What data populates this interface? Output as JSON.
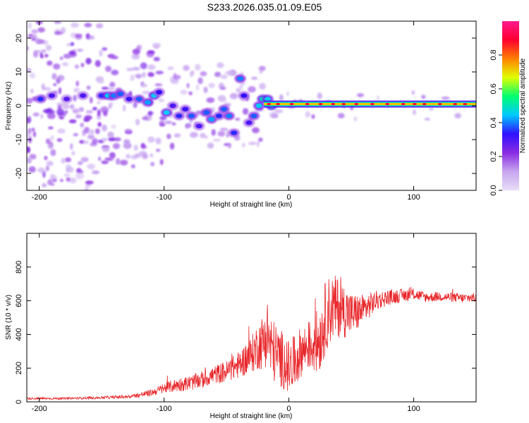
{
  "title": "S233.2026.035.01.09.E05",
  "colors": {
    "snr_line": "#e8262a",
    "colorbar": [
      "#e8dcf6",
      "#c7a6f0",
      "#8a2be2",
      "#3010ff",
      "#00c8ff",
      "#00ff70",
      "#e0ff00",
      "#ff8000",
      "#ff0030",
      "#ff1a8c"
    ]
  },
  "chart_data": [
    {
      "type": "heatmap",
      "xlabel": "Height of straight line (km)",
      "ylabel": "Frequency (Hz)",
      "xlim": [
        -210,
        150
      ],
      "ylim": [
        -25,
        25
      ],
      "xticks": [
        -200,
        -100,
        0,
        100
      ],
      "xtick_labels": [
        "-200",
        "-100",
        "0",
        "100"
      ],
      "yticks": [
        -20,
        -10,
        0,
        10,
        20
      ],
      "ytick_labels": [
        "-20",
        "-10",
        "0",
        "10",
        "20"
      ],
      "colorbar": {
        "label": "Normalized spectral amplitude",
        "range": [
          0,
          1
        ],
        "ticks": [
          0.0,
          0.2,
          0.4,
          0.6,
          0.8
        ],
        "tick_labels": [
          "0.0",
          "0.2",
          "0.4",
          "0.6",
          "0.8"
        ]
      },
      "ridge": {
        "x_start": -20,
        "x_end": 150,
        "frequency": 0.5,
        "amplitude": 0.9
      },
      "features": [
        {
          "x": -199,
          "y": 2,
          "amp": 0.35
        },
        {
          "x": -190,
          "y": 3,
          "amp": 0.3
        },
        {
          "x": -178,
          "y": 2,
          "amp": 0.28
        },
        {
          "x": -165,
          "y": 3,
          "amp": 0.3
        },
        {
          "x": -150,
          "y": 3,
          "amp": 0.35
        },
        {
          "x": -145,
          "y": 3,
          "amp": 0.45
        },
        {
          "x": -140,
          "y": 3,
          "amp": 0.4
        },
        {
          "x": -135,
          "y": 3.5,
          "amp": 0.38
        },
        {
          "x": -128,
          "y": 2,
          "amp": 0.32
        },
        {
          "x": -120,
          "y": 2,
          "amp": 0.38
        },
        {
          "x": -113,
          "y": 1,
          "amp": 0.42
        },
        {
          "x": -108,
          "y": 3,
          "amp": 0.45
        },
        {
          "x": -104,
          "y": 4,
          "amp": 0.33
        },
        {
          "x": -98,
          "y": -2,
          "amp": 0.45
        },
        {
          "x": -93,
          "y": 0,
          "amp": 0.3
        },
        {
          "x": -88,
          "y": -3,
          "amp": 0.35
        },
        {
          "x": -83,
          "y": -1,
          "amp": 0.32
        },
        {
          "x": -78,
          "y": -3,
          "amp": 0.38
        },
        {
          "x": -72,
          "y": -6,
          "amp": 0.3
        },
        {
          "x": -66,
          "y": -2,
          "amp": 0.38
        },
        {
          "x": -62,
          "y": -4,
          "amp": 0.42
        },
        {
          "x": -56,
          "y": -3,
          "amp": 0.35
        },
        {
          "x": -52,
          "y": -1,
          "amp": 0.38
        },
        {
          "x": -48,
          "y": -3,
          "amp": 0.4
        },
        {
          "x": -44,
          "y": -8,
          "amp": 0.35
        },
        {
          "x": -39,
          "y": 8,
          "amp": 0.4
        },
        {
          "x": -36,
          "y": 3,
          "amp": 0.33
        },
        {
          "x": -32,
          "y": -5,
          "amp": 0.3
        },
        {
          "x": -28,
          "y": -3,
          "amp": 0.38
        },
        {
          "x": -24,
          "y": 0,
          "amp": 0.45
        },
        {
          "x": -21,
          "y": 2,
          "amp": 0.5
        },
        {
          "x": -17,
          "y": 2,
          "amp": 0.45
        },
        {
          "x": -14,
          "y": 0,
          "amp": 0.55
        }
      ]
    },
    {
      "type": "line",
      "xlabel": "Height of straight line (km)",
      "ylabel": "SNR (10 * v/v)",
      "xlim": [
        -210,
        150
      ],
      "ylim": [
        0,
        1000
      ],
      "xticks": [
        -200,
        -100,
        0,
        100
      ],
      "xtick_labels": [
        "-200",
        "-100",
        "0",
        "100"
      ],
      "yticks": [
        0,
        200,
        400,
        600,
        800
      ],
      "ytick_labels": [
        "0",
        "200",
        "400",
        "600",
        "800"
      ],
      "series": [
        {
          "name": "SNR",
          "x": [
            -210,
            -180,
            -150,
            -130,
            -120,
            -110,
            -100,
            -90,
            -80,
            -70,
            -60,
            -50,
            -40,
            -30,
            -25,
            -20,
            -17,
            -15,
            -10,
            -5,
            0,
            5,
            10,
            15,
            20,
            25,
            30,
            35,
            40,
            45,
            50,
            55,
            60,
            70,
            80,
            90,
            100,
            110,
            120,
            130,
            140,
            150
          ],
          "y": [
            20,
            20,
            25,
            30,
            40,
            55,
            80,
            100,
            110,
            130,
            160,
            180,
            220,
            280,
            330,
            360,
            420,
            330,
            280,
            250,
            200,
            240,
            300,
            330,
            340,
            380,
            520,
            560,
            560,
            540,
            520,
            530,
            550,
            600,
            620,
            630,
            640,
            620,
            625,
            620,
            615,
            620
          ],
          "jitter": [
            6,
            6,
            8,
            10,
            15,
            20,
            30,
            40,
            45,
            50,
            55,
            65,
            80,
            110,
            140,
            170,
            200,
            200,
            180,
            170,
            160,
            160,
            150,
            140,
            180,
            200,
            220,
            200,
            180,
            160,
            130,
            110,
            90,
            60,
            45,
            40,
            35,
            30,
            28,
            28,
            28,
            28
          ]
        }
      ]
    }
  ]
}
